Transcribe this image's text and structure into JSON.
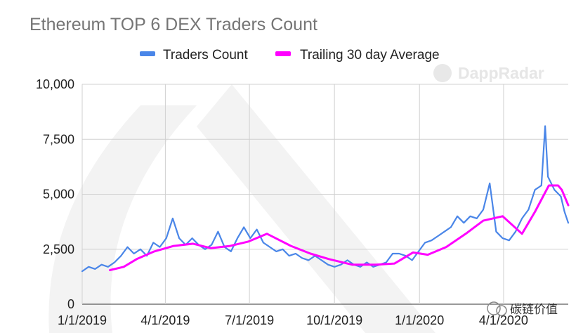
{
  "chart_data": {
    "type": "line",
    "title": "Ethereum TOP 6 DEX Traders Count",
    "xlabel": "",
    "ylabel": "",
    "x_range": [
      "2019-01-01",
      "2020-06-10"
    ],
    "ylim": [
      0,
      10000
    ],
    "y_ticks": [
      0,
      2500,
      5000,
      7500,
      10000
    ],
    "y_tick_labels": [
      "0",
      "2,500",
      "5,000",
      "7,500",
      "10,000"
    ],
    "x_ticks": [
      "2019-01-01",
      "2019-04-01",
      "2019-07-01",
      "2019-10-01",
      "2020-01-01",
      "2020-04-01"
    ],
    "x_tick_labels": [
      "1/1/2019",
      "4/1/2019",
      "7/1/2019",
      "10/1/2019",
      "1/1/2020",
      "4/1/2020"
    ],
    "grid": true,
    "legend_position": "top",
    "series": [
      {
        "name": "Traders Count",
        "color": "#4a86e8",
        "points": [
          [
            "2019-01-01",
            1500
          ],
          [
            "2019-01-08",
            1700
          ],
          [
            "2019-01-15",
            1600
          ],
          [
            "2019-01-22",
            1800
          ],
          [
            "2019-01-29",
            1700
          ],
          [
            "2019-02-05",
            1900
          ],
          [
            "2019-02-12",
            2200
          ],
          [
            "2019-02-19",
            2600
          ],
          [
            "2019-02-26",
            2300
          ],
          [
            "2019-03-05",
            2500
          ],
          [
            "2019-03-12",
            2200
          ],
          [
            "2019-03-19",
            2800
          ],
          [
            "2019-03-26",
            2600
          ],
          [
            "2019-04-02",
            3000
          ],
          [
            "2019-04-09",
            3900
          ],
          [
            "2019-04-16",
            3000
          ],
          [
            "2019-04-23",
            2700
          ],
          [
            "2019-04-30",
            3000
          ],
          [
            "2019-05-07",
            2700
          ],
          [
            "2019-05-14",
            2500
          ],
          [
            "2019-05-21",
            2700
          ],
          [
            "2019-05-28",
            3300
          ],
          [
            "2019-06-04",
            2600
          ],
          [
            "2019-06-11",
            2400
          ],
          [
            "2019-06-18",
            3000
          ],
          [
            "2019-06-25",
            3500
          ],
          [
            "2019-07-02",
            3000
          ],
          [
            "2019-07-09",
            3400
          ],
          [
            "2019-07-16",
            2800
          ],
          [
            "2019-07-23",
            2600
          ],
          [
            "2019-07-30",
            2400
          ],
          [
            "2019-08-06",
            2500
          ],
          [
            "2019-08-13",
            2200
          ],
          [
            "2019-08-20",
            2300
          ],
          [
            "2019-08-27",
            2100
          ],
          [
            "2019-09-03",
            2000
          ],
          [
            "2019-09-10",
            2200
          ],
          [
            "2019-09-17",
            2000
          ],
          [
            "2019-09-24",
            1800
          ],
          [
            "2019-10-01",
            1700
          ],
          [
            "2019-10-08",
            1800
          ],
          [
            "2019-10-15",
            2000
          ],
          [
            "2019-10-22",
            1800
          ],
          [
            "2019-10-29",
            1700
          ],
          [
            "2019-11-05",
            1900
          ],
          [
            "2019-11-12",
            1700
          ],
          [
            "2019-11-19",
            1800
          ],
          [
            "2019-11-26",
            1900
          ],
          [
            "2019-12-03",
            2300
          ],
          [
            "2019-12-10",
            2300
          ],
          [
            "2019-12-17",
            2200
          ],
          [
            "2019-12-24",
            2000
          ],
          [
            "2019-12-31",
            2400
          ],
          [
            "2020-01-07",
            2800
          ],
          [
            "2020-01-14",
            2900
          ],
          [
            "2020-01-21",
            3100
          ],
          [
            "2020-01-28",
            3300
          ],
          [
            "2020-02-04",
            3500
          ],
          [
            "2020-02-11",
            4000
          ],
          [
            "2020-02-18",
            3700
          ],
          [
            "2020-02-25",
            4000
          ],
          [
            "2020-03-03",
            3900
          ],
          [
            "2020-03-10",
            4300
          ],
          [
            "2020-03-17",
            5500
          ],
          [
            "2020-03-24",
            3300
          ],
          [
            "2020-03-31",
            3000
          ],
          [
            "2020-04-07",
            2900
          ],
          [
            "2020-04-14",
            3300
          ],
          [
            "2020-04-21",
            3900
          ],
          [
            "2020-04-28",
            4300
          ],
          [
            "2020-05-05",
            5200
          ],
          [
            "2020-05-12",
            5400
          ],
          [
            "2020-05-16",
            8100
          ],
          [
            "2020-05-19",
            5800
          ],
          [
            "2020-05-26",
            5200
          ],
          [
            "2020-06-02",
            4900
          ],
          [
            "2020-06-06",
            4200
          ],
          [
            "2020-06-10",
            3700
          ]
        ]
      },
      {
        "name": "Trailing 30 day Average",
        "color": "#ff00ff",
        "points": [
          [
            "2019-01-31",
            1550
          ],
          [
            "2019-02-15",
            1700
          ],
          [
            "2019-03-01",
            2050
          ],
          [
            "2019-03-20",
            2400
          ],
          [
            "2019-04-10",
            2650
          ],
          [
            "2019-05-01",
            2750
          ],
          [
            "2019-05-20",
            2550
          ],
          [
            "2019-06-10",
            2650
          ],
          [
            "2019-06-30",
            2850
          ],
          [
            "2019-07-20",
            3200
          ],
          [
            "2019-08-15",
            2650
          ],
          [
            "2019-09-05",
            2300
          ],
          [
            "2019-09-25",
            2050
          ],
          [
            "2019-10-20",
            1800
          ],
          [
            "2019-11-15",
            1800
          ],
          [
            "2019-12-05",
            1850
          ],
          [
            "2019-12-25",
            2350
          ],
          [
            "2020-01-10",
            2250
          ],
          [
            "2020-01-30",
            2600
          ],
          [
            "2020-02-20",
            3200
          ],
          [
            "2020-03-10",
            3800
          ],
          [
            "2020-03-31",
            4000
          ],
          [
            "2020-04-21",
            3200
          ],
          [
            "2020-05-05",
            4200
          ],
          [
            "2020-05-20",
            5400
          ],
          [
            "2020-05-30",
            5400
          ],
          [
            "2020-06-03",
            5200
          ],
          [
            "2020-06-10",
            4500
          ]
        ]
      }
    ]
  },
  "watermark": "DappRadar",
  "wechat_label": "碳链价值"
}
